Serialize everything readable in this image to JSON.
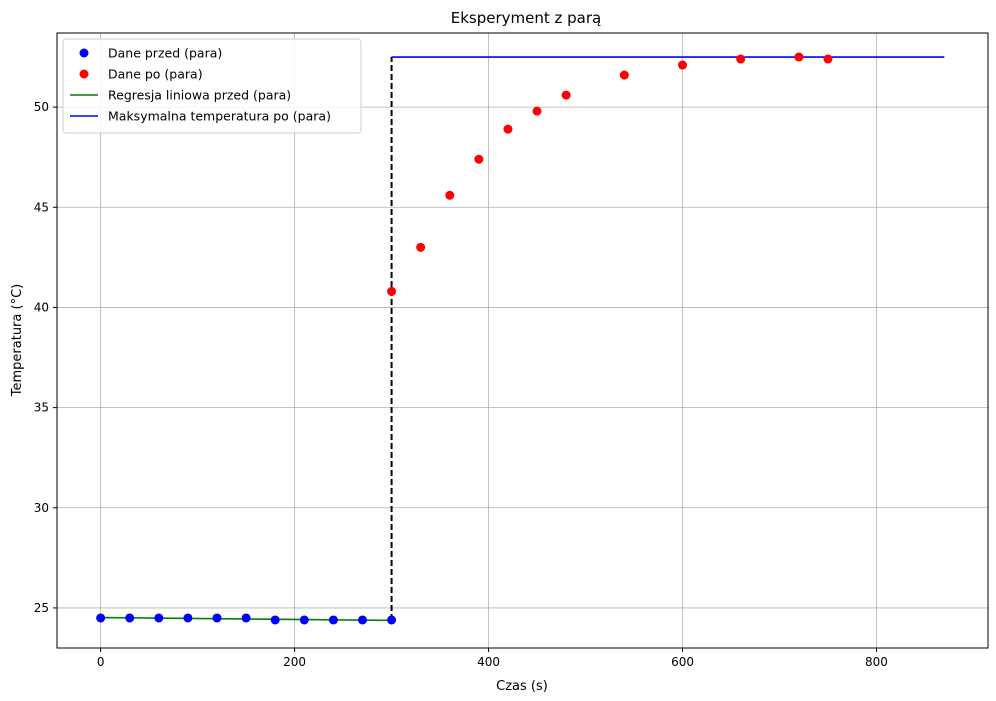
{
  "chart_data": {
    "type": "scatter",
    "title": "Eksperyment z parą",
    "xlabel": "Czas (s)",
    "ylabel": "Temperatura (°C)",
    "xlim": [
      -45,
      915
    ],
    "ylim": [
      23.0,
      53.7
    ],
    "xticks": [
      0,
      200,
      400,
      600,
      800
    ],
    "yticks": [
      25,
      30,
      35,
      40,
      45,
      50
    ],
    "grid": true,
    "legend_position": "top-left",
    "series": [
      {
        "name": "Dane przed (para)",
        "kind": "scatter",
        "color": "#0000ff",
        "x": [
          0,
          30,
          60,
          90,
          120,
          150,
          180,
          210,
          240,
          270,
          300
        ],
        "y": [
          24.5,
          24.5,
          24.5,
          24.5,
          24.5,
          24.5,
          24.4,
          24.4,
          24.4,
          24.4,
          24.4
        ]
      },
      {
        "name": "Dane po (para)",
        "kind": "scatter",
        "color": "#ff0000",
        "x": [
          300,
          330,
          360,
          390,
          420,
          450,
          480,
          540,
          600,
          660,
          720,
          750
        ],
        "y": [
          40.8,
          43.0,
          45.6,
          47.4,
          48.9,
          49.8,
          50.6,
          51.6,
          52.1,
          52.4,
          52.5,
          52.4
        ]
      },
      {
        "name": "Regresja liniowa przed (para)",
        "kind": "line",
        "color": "#008000",
        "x": [
          0,
          300
        ],
        "y": [
          24.52,
          24.38
        ]
      },
      {
        "name": "Maksymalna temperatura po (para)",
        "kind": "line",
        "color": "#0000ff",
        "x": [
          300,
          870
        ],
        "y": [
          52.5,
          52.5
        ]
      }
    ],
    "annotations": [
      {
        "kind": "dashed-line",
        "color": "#000000",
        "x": [
          300,
          300
        ],
        "y": [
          24.4,
          52.5
        ]
      }
    ]
  }
}
